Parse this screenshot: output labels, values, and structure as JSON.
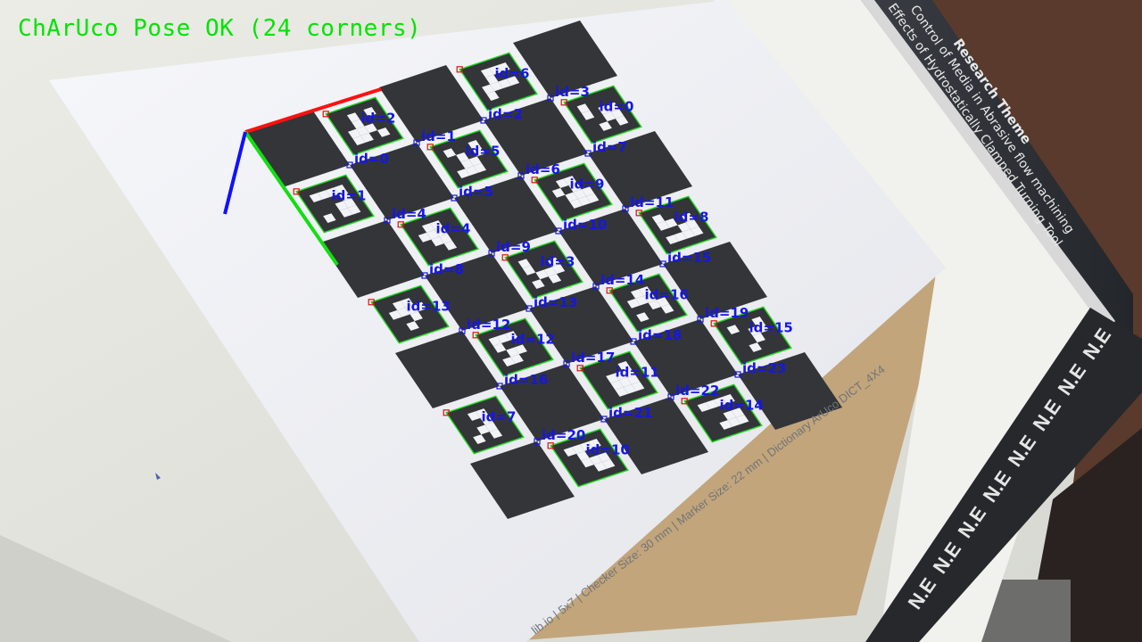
{
  "status": {
    "text": "ChArUco Pose OK (24 corners)",
    "color": "#00e400"
  },
  "board": {
    "footer": "lib.io | 5x7 | Checker Size: 30 mm | Marker Size: 22 mm | Dictionary ArUco DICT_4X4",
    "cols": 5,
    "rows": 7,
    "marker_ids": [
      "id=2",
      "id=6",
      "id=1",
      "id=5",
      "id=0",
      "id=4",
      "id=9",
      "id=13",
      "id=3",
      "id=8",
      "id=12",
      "id=16",
      "id=7",
      "id=11",
      "id=15",
      "id=10",
      "id=14"
    ],
    "corner_ids": [
      "id=0",
      "id=1",
      "id=2",
      "id=3",
      "id=4",
      "id=5",
      "id=6",
      "id=7",
      "id=8",
      "id=9",
      "id=10",
      "id=11",
      "id=12",
      "id=13",
      "id=14",
      "id=15",
      "id=16",
      "id=17",
      "id=18",
      "id=19",
      "id=20",
      "id=21",
      "id=22",
      "id=23"
    ]
  },
  "colors": {
    "marker_outline": "#1fd81f",
    "label": "#1616e6",
    "corner_first": "#e01010",
    "axis_x": "#ff1010",
    "axis_y": "#10e010",
    "axis_z": "#1010ff"
  },
  "background": {
    "book_title": "Research Theme",
    "book_lines": [
      "Control of Media in Abrasive flow machining",
      "Effects of Hydrostatically Clamped Turning Tool"
    ],
    "ruler_label": "N.E"
  }
}
